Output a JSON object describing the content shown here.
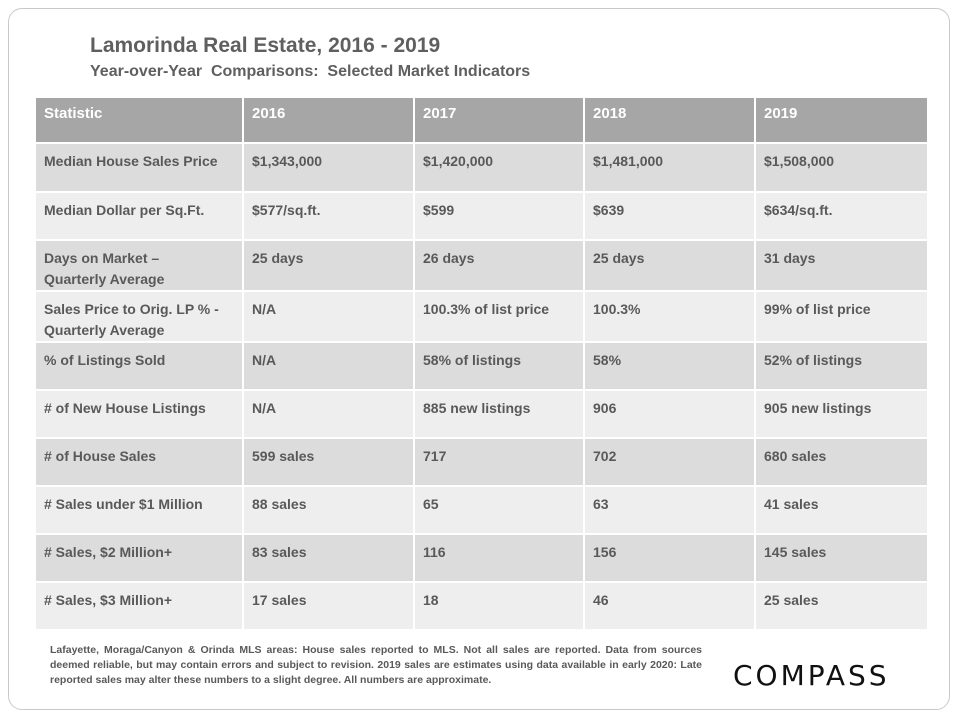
{
  "title": "Lamorinda Real Estate, 2016 - 2019",
  "subtitle": "Year-over-Year  Comparisons:  Selected Market Indicators",
  "table": {
    "headers": [
      "Statistic",
      "2016",
      "2017",
      "2018",
      "2019"
    ],
    "rows": [
      [
        "Median House Sales Price",
        "$1,343,000",
        "$1,420,000",
        "$1,481,000",
        "$1,508,000"
      ],
      [
        "Median Dollar per Sq.Ft.",
        "$577/sq.ft.",
        "$599",
        "$639",
        "$634/sq.ft."
      ],
      [
        "Days on Market –\nQuarterly Average",
        "25 days",
        "26 days",
        "25 days",
        "31 days"
      ],
      [
        "Sales Price to Orig. LP % -\nQuarterly Average",
        "N/A",
        "100.3% of list price",
        "100.3%",
        "99% of list price"
      ],
      [
        "% of Listings Sold",
        "N/A",
        "58% of listings",
        "58%",
        "52% of listings"
      ],
      [
        "# of New House Listings",
        "N/A",
        "885 new listings",
        "906",
        "905 new listings"
      ],
      [
        "# of House Sales",
        "599 sales",
        "717",
        "702",
        "680 sales"
      ],
      [
        "# Sales under $1 Million",
        "88 sales",
        "65",
        "63",
        "41 sales"
      ],
      [
        "# Sales, $2 Million+",
        "83 sales",
        "116",
        "156",
        "145 sales"
      ],
      [
        "# Sales, $3 Million+",
        "17 sales",
        "18",
        "46",
        "25 sales"
      ]
    ]
  },
  "footnote": "Lafayette, Moraga/Canyon & Orinda MLS areas: House sales reported to MLS. Not all sales are reported. Data from sources deemed reliable, but may contain errors and subject to revision. 2019 sales are estimates using data available in early 2020: Late reported sales may alter these numbers to a slight degree. All numbers are approximate.",
  "logo_text": "COMPASS",
  "colors": {
    "header_fill": "#a6a6a6",
    "row_dark": "#dcdcdc",
    "row_light": "#eeeeee",
    "text": "#595959"
  }
}
